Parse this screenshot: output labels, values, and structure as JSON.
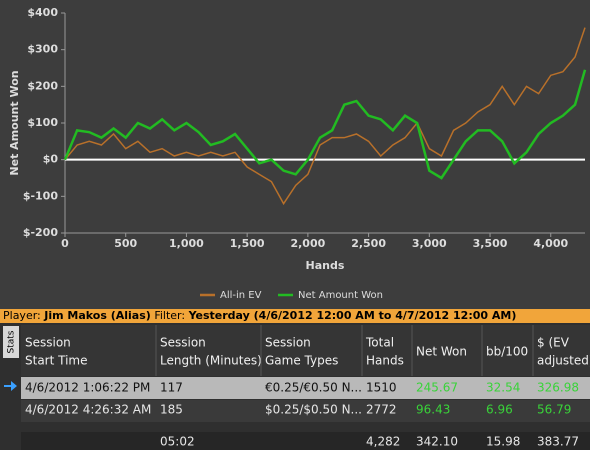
{
  "chart_data": {
    "type": "line",
    "xlabel": "Hands",
    "ylabel": "Net Amount Won",
    "x": [
      0,
      100,
      200,
      300,
      400,
      500,
      600,
      700,
      800,
      900,
      1000,
      1100,
      1200,
      1300,
      1400,
      1500,
      1600,
      1700,
      1800,
      1900,
      2000,
      2100,
      2200,
      2300,
      2400,
      2500,
      2600,
      2700,
      2800,
      2900,
      3000,
      3100,
      3200,
      3300,
      3400,
      3500,
      3600,
      3700,
      3800,
      3900,
      4000,
      4100,
      4200,
      4282
    ],
    "series": [
      {
        "name": "All-in EV",
        "color": "#b8702a",
        "values": [
          0,
          40,
          50,
          40,
          70,
          30,
          50,
          20,
          30,
          10,
          20,
          10,
          20,
          10,
          20,
          -20,
          -40,
          -60,
          -120,
          -70,
          -40,
          40,
          60,
          60,
          70,
          50,
          10,
          40,
          60,
          100,
          30,
          10,
          80,
          100,
          130,
          150,
          200,
          150,
          200,
          180,
          230,
          240,
          280,
          360
        ]
      },
      {
        "name": "Net Amount Won",
        "color": "#22bb22",
        "values": [
          0,
          80,
          75,
          60,
          85,
          60,
          100,
          85,
          110,
          80,
          100,
          75,
          40,
          50,
          70,
          30,
          -10,
          0,
          -30,
          -40,
          0,
          60,
          80,
          150,
          160,
          120,
          110,
          80,
          120,
          100,
          -30,
          -50,
          0,
          50,
          80,
          80,
          50,
          -10,
          20,
          70,
          100,
          120,
          150,
          245
        ]
      }
    ],
    "xlim": [
      0,
      4282
    ],
    "xticks": [
      0,
      500,
      {
        "value": 1000,
        "label": "1,000"
      },
      {
        "value": 1500,
        "label": "1,500"
      },
      {
        "value": 2000,
        "label": "2,000"
      },
      {
        "value": 2500,
        "label": "2,500"
      },
      {
        "value": 3000,
        "label": "3,000"
      },
      {
        "value": 3500,
        "label": "3,500"
      },
      {
        "value": 4000,
        "label": "4,000"
      }
    ],
    "ylim": [
      -200,
      400
    ],
    "yticks": [
      {
        "value": 400,
        "label": "$400"
      },
      {
        "value": 300,
        "label": "$300"
      },
      {
        "value": 200,
        "label": "$200"
      },
      {
        "value": 100,
        "label": "$100"
      },
      {
        "value": 0,
        "label": "$0"
      },
      {
        "value": -100,
        "label": "$-100"
      },
      {
        "value": -200,
        "label": "$-200"
      }
    ],
    "zero_line": true,
    "legend": "bottom"
  },
  "filter_bar": {
    "player_label": "Player:",
    "player": "Jim Makos (Alias)",
    "filter_label": "Filter:",
    "filter": "Yesterday (4/6/2012 12:00 AM to 4/7/2012 12:00 AM)"
  },
  "table": {
    "tab": "Stats",
    "columns": [
      [
        "Session",
        "Start Time"
      ],
      [
        "Session",
        "Length (Minutes)"
      ],
      [
        "Session",
        "Game Types"
      ],
      [
        "Total",
        "Hands"
      ],
      [
        "Net Won"
      ],
      [
        "bb/100"
      ],
      [
        "$ (EV",
        "adjusted)"
      ]
    ],
    "rows": [
      [
        "4/6/2012 1:06:22 PM",
        "117",
        "€0.25/€0.50 N...",
        "1510",
        "245.67",
        "32.54",
        "326.98"
      ],
      [
        "4/6/2012 4:26:32 AM",
        "185",
        "$0.25/$0.50 N...",
        "2772",
        "96.43",
        "6.96",
        "56.79"
      ]
    ],
    "totals": [
      "05:02",
      "4,282",
      "342.10",
      "15.98",
      "383.77"
    ]
  }
}
